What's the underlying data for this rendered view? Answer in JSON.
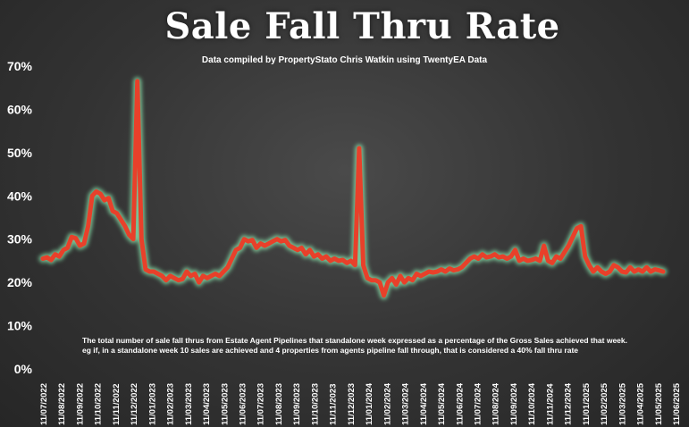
{
  "chart_data": {
    "type": "line",
    "title": "Sale Fall Thru Rate",
    "subtitle": "Data compiled by PropertyStato Chris Watkin using TwentyEA Data",
    "annotation": [
      "The total number of sale fall thrus from Estate Agent Pipelines that standalone week expressed as a percentage of the Gross Sales achieved that week.",
      "eg if, in a standalone week 10 sales are achieved and 4 properties from agents pipeline fall through, that is considered a 40%  fall thru rate"
    ],
    "ylim": [
      0,
      70
    ],
    "y_ticks": [
      "0%",
      "10%",
      "20%",
      "30%",
      "40%",
      "50%",
      "60%",
      "70%"
    ],
    "x_ticks": [
      "11/07/2022",
      "11/08/2022",
      "11/09/2022",
      "11/10/2022",
      "11/11/2022",
      "11/12/2022",
      "11/01/2023",
      "11/02/2023",
      "11/03/2023",
      "11/04/2023",
      "11/05/2023",
      "11/06/2023",
      "11/07/2023",
      "11/08/2023",
      "11/09/2023",
      "11/10/2023",
      "11/11/2023",
      "11/12/2023",
      "11/01/2024",
      "11/02/2024",
      "11/03/2024",
      "11/04/2024",
      "11/05/2024",
      "11/06/2024",
      "11/07/2024",
      "11/08/2024",
      "11/09/2024",
      "11/10/2024",
      "11/11/2024",
      "11/12/2024",
      "11/01/2025",
      "11/02/2025",
      "11/03/2025",
      "11/04/2025",
      "11/05/2025",
      "11/06/2025"
    ],
    "grid": false,
    "legend": "none",
    "line_color": "#e8402a",
    "glow_color": "#8ff0b4",
    "series": [
      {
        "values": [
          25.5,
          25.8,
          25.2,
          26.5,
          26.0,
          27.5,
          28.0,
          30.5,
          30.2,
          28.5,
          29.0,
          33.0,
          40.0,
          41.0,
          40.5,
          39.0,
          39.5,
          36.5,
          36.0,
          34.5,
          33.0,
          31.0,
          30.0,
          66.5,
          30.0,
          23.0,
          22.5,
          22.5,
          22.0,
          21.5,
          20.5,
          21.5,
          21.0,
          20.5,
          20.8,
          22.5,
          21.5,
          22.0,
          20.0,
          21.5,
          21.0,
          21.5,
          22.0,
          21.5,
          22.5,
          23.5,
          25.5,
          27.5,
          28.0,
          30.0,
          29.5,
          29.8,
          28.0,
          29.0,
          28.5,
          29.0,
          29.5,
          30.0,
          29.5,
          29.8,
          28.5,
          28.0,
          27.5,
          28.0,
          26.5,
          27.5,
          26.0,
          26.5,
          25.5,
          26.0,
          25.0,
          25.5,
          25.0,
          25.2,
          24.5,
          25.0,
          24.0,
          51.0,
          24.0,
          21.0,
          20.5,
          20.5,
          20.0,
          17.0,
          20.0,
          21.0,
          19.5,
          21.5,
          20.0,
          21.0,
          20.5,
          22.0,
          21.5,
          22.0,
          22.5,
          22.3,
          22.5,
          23.0,
          22.5,
          23.2,
          22.8,
          23.0,
          23.5,
          24.5,
          25.5,
          26.0,
          25.5,
          26.5,
          25.8,
          26.0,
          26.5,
          25.8,
          26.0,
          25.5,
          26.0,
          27.5,
          25.0,
          25.5,
          25.0,
          25.2,
          25.5,
          25.0,
          28.5,
          25.0,
          24.5,
          26.0,
          25.5,
          27.0,
          28.5,
          30.5,
          32.5,
          33.0,
          26.0,
          24.0,
          22.5,
          23.5,
          22.5,
          22.0,
          22.5,
          24.0,
          23.5,
          22.5,
          22.3,
          23.5,
          22.5,
          23.0,
          22.5,
          23.5,
          22.5,
          23.0,
          22.8,
          22.5
        ]
      }
    ]
  }
}
